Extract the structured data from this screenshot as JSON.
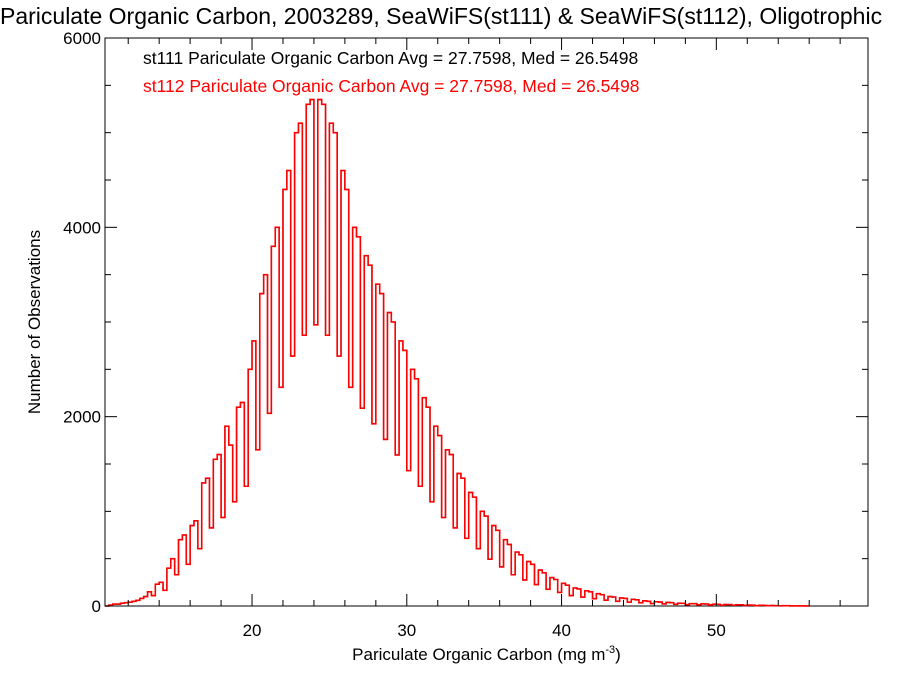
{
  "chart_data": {
    "type": "histogram",
    "title": "Pariculate Organic Carbon, 2003289, SeaWiFS(st111) & SeaWiFS(st112), Oligotrophic",
    "xlabel": {
      "text": "Pariculate Organic Carbon (mg m",
      "sup": "-3",
      "close": ")"
    },
    "ylabel": "Number of Observations",
    "xlim": [
      10.5,
      59.8
    ],
    "ylim": [
      0,
      6000
    ],
    "x_ticks": [
      20,
      30,
      40,
      50
    ],
    "x_tick_labels": [
      "20",
      "30",
      "40",
      "50"
    ],
    "y_ticks": [
      0,
      2000,
      4000,
      6000
    ],
    "y_tick_labels": [
      "0",
      "2000",
      "4000",
      "6000"
    ],
    "grid": false,
    "legend": [
      {
        "text": "st111 Pariculate Organic Carbon Avg = 27.7598, Med = 26.5498",
        "color": "#000000"
      },
      {
        "text": "st112 Pariculate Organic Carbon Avg = 27.7598, Med = 26.5498",
        "color": "#ff0000"
      }
    ],
    "series": [
      {
        "name": "st111",
        "color": "#000000",
        "stats": {
          "avg": 27.7598,
          "med": 26.5498
        }
      },
      {
        "name": "st112",
        "color": "#ff0000",
        "stats": {
          "avg": 27.7598,
          "med": 26.5498
        }
      }
    ],
    "bins": {
      "note_overlap": "both series identical; st112 drawn on top",
      "x_start": 10.5,
      "bin_width": 0.25,
      "values": [
        0,
        10,
        20,
        20,
        30,
        35,
        40,
        50,
        60,
        80,
        100,
        150,
        200,
        230,
        250,
        300,
        400,
        500,
        600,
        700,
        750,
        800,
        850,
        900,
        1100,
        1300,
        1350,
        1500,
        1550,
        1600,
        1700,
        1900,
        1700,
        2000,
        2100,
        2150,
        2300,
        2500,
        2800,
        3000,
        3300,
        3500,
        3700,
        3800,
        4000,
        4200,
        4400,
        4600,
        4800,
        5000,
        5100,
        5200,
        5300,
        5350,
        5400,
        5350,
        5300,
        5200,
        5100,
        5000,
        4800,
        4600,
        4400,
        4200,
        4000,
        3900,
        3800,
        3700,
        3600,
        3500,
        3400,
        3300,
        3200,
        3100,
        3000,
        2900,
        2800,
        2700,
        2600,
        2500,
        2400,
        2300,
        2200,
        2100,
        2000,
        1900,
        1800,
        1700,
        1650,
        1600,
        1500,
        1400,
        1350,
        1300,
        1200,
        1150,
        1100,
        1000,
        950,
        900,
        850,
        800,
        750,
        700,
        650,
        600,
        570,
        540,
        500,
        470,
        440,
        410,
        380,
        350,
        320,
        300,
        280,
        260,
        240,
        220,
        200,
        190,
        180,
        170,
        160,
        150,
        140,
        130,
        120,
        110,
        100,
        95,
        90,
        85,
        80,
        75,
        70,
        65,
        60,
        55,
        50,
        48,
        45,
        42,
        40,
        38,
        35,
        32,
        30,
        28,
        26,
        25,
        24,
        23,
        22,
        21,
        20,
        19,
        18,
        17,
        16,
        15,
        14,
        13,
        12,
        11,
        10,
        9,
        8,
        7,
        6,
        5,
        5,
        4,
        4,
        3,
        3,
        2,
        2,
        1,
        1,
        0
      ],
      "dip_every": 3,
      "dip_factor": 0.55
    }
  }
}
